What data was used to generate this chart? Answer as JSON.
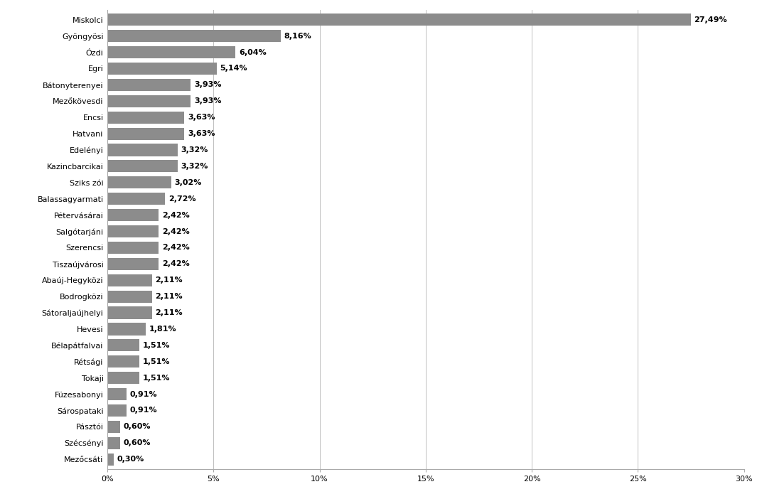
{
  "categories": [
    "Miskolci",
    "Gyöngyösi",
    "Ózdi",
    "Egri",
    "Bátonyterenyei",
    "Mezőkövesdi",
    "Encsi",
    "Hatvani",
    "Edelényi",
    "Kazincbarcikai",
    "Sziks zói",
    "Balassagyarmati",
    "Pétervásárai",
    "Salgótarjáni",
    "Szerencsi",
    "Tiszаújvárosi",
    "Abaúj-Hegyközi",
    "Bodrogközi",
    "Sátoraljaújhelyi",
    "Hevesi",
    "Bélapátfalvai",
    "Rétsági",
    "Tokaji",
    "Füzesabonyi",
    "Sárospataki",
    "Pásztói",
    "Szécsényi",
    "Mezőcsáti"
  ],
  "values": [
    27.49,
    8.16,
    6.04,
    5.14,
    3.93,
    3.93,
    3.63,
    3.63,
    3.32,
    3.32,
    3.02,
    2.72,
    2.42,
    2.42,
    2.42,
    2.42,
    2.11,
    2.11,
    2.11,
    1.81,
    1.51,
    1.51,
    1.51,
    0.91,
    0.91,
    0.6,
    0.6,
    0.3
  ],
  "labels": [
    "27,49%",
    "8,16%",
    "6,04%",
    "5,14%",
    "3,93%",
    "3,93%",
    "3,63%",
    "3,63%",
    "3,32%",
    "3,32%",
    "3,02%",
    "2,72%",
    "2,42%",
    "2,42%",
    "2,42%",
    "2,42%",
    "2,11%",
    "2,11%",
    "2,11%",
    "1,81%",
    "1,51%",
    "1,51%",
    "1,51%",
    "0,91%",
    "0,91%",
    "0,60%",
    "0,60%",
    "0,30%"
  ],
  "bar_color": "#8c8c8c",
  "background_color": "#ffffff",
  "xlim": [
    0,
    30
  ],
  "xticks": [
    0,
    5,
    10,
    15,
    20,
    25,
    30
  ],
  "xtick_labels": [
    "0%",
    "5%",
    "10%",
    "15%",
    "20%",
    "25%",
    "30%"
  ],
  "label_fontsize": 8,
  "tick_fontsize": 8,
  "figsize": [
    10.79,
    7.02
  ],
  "dpi": 100
}
